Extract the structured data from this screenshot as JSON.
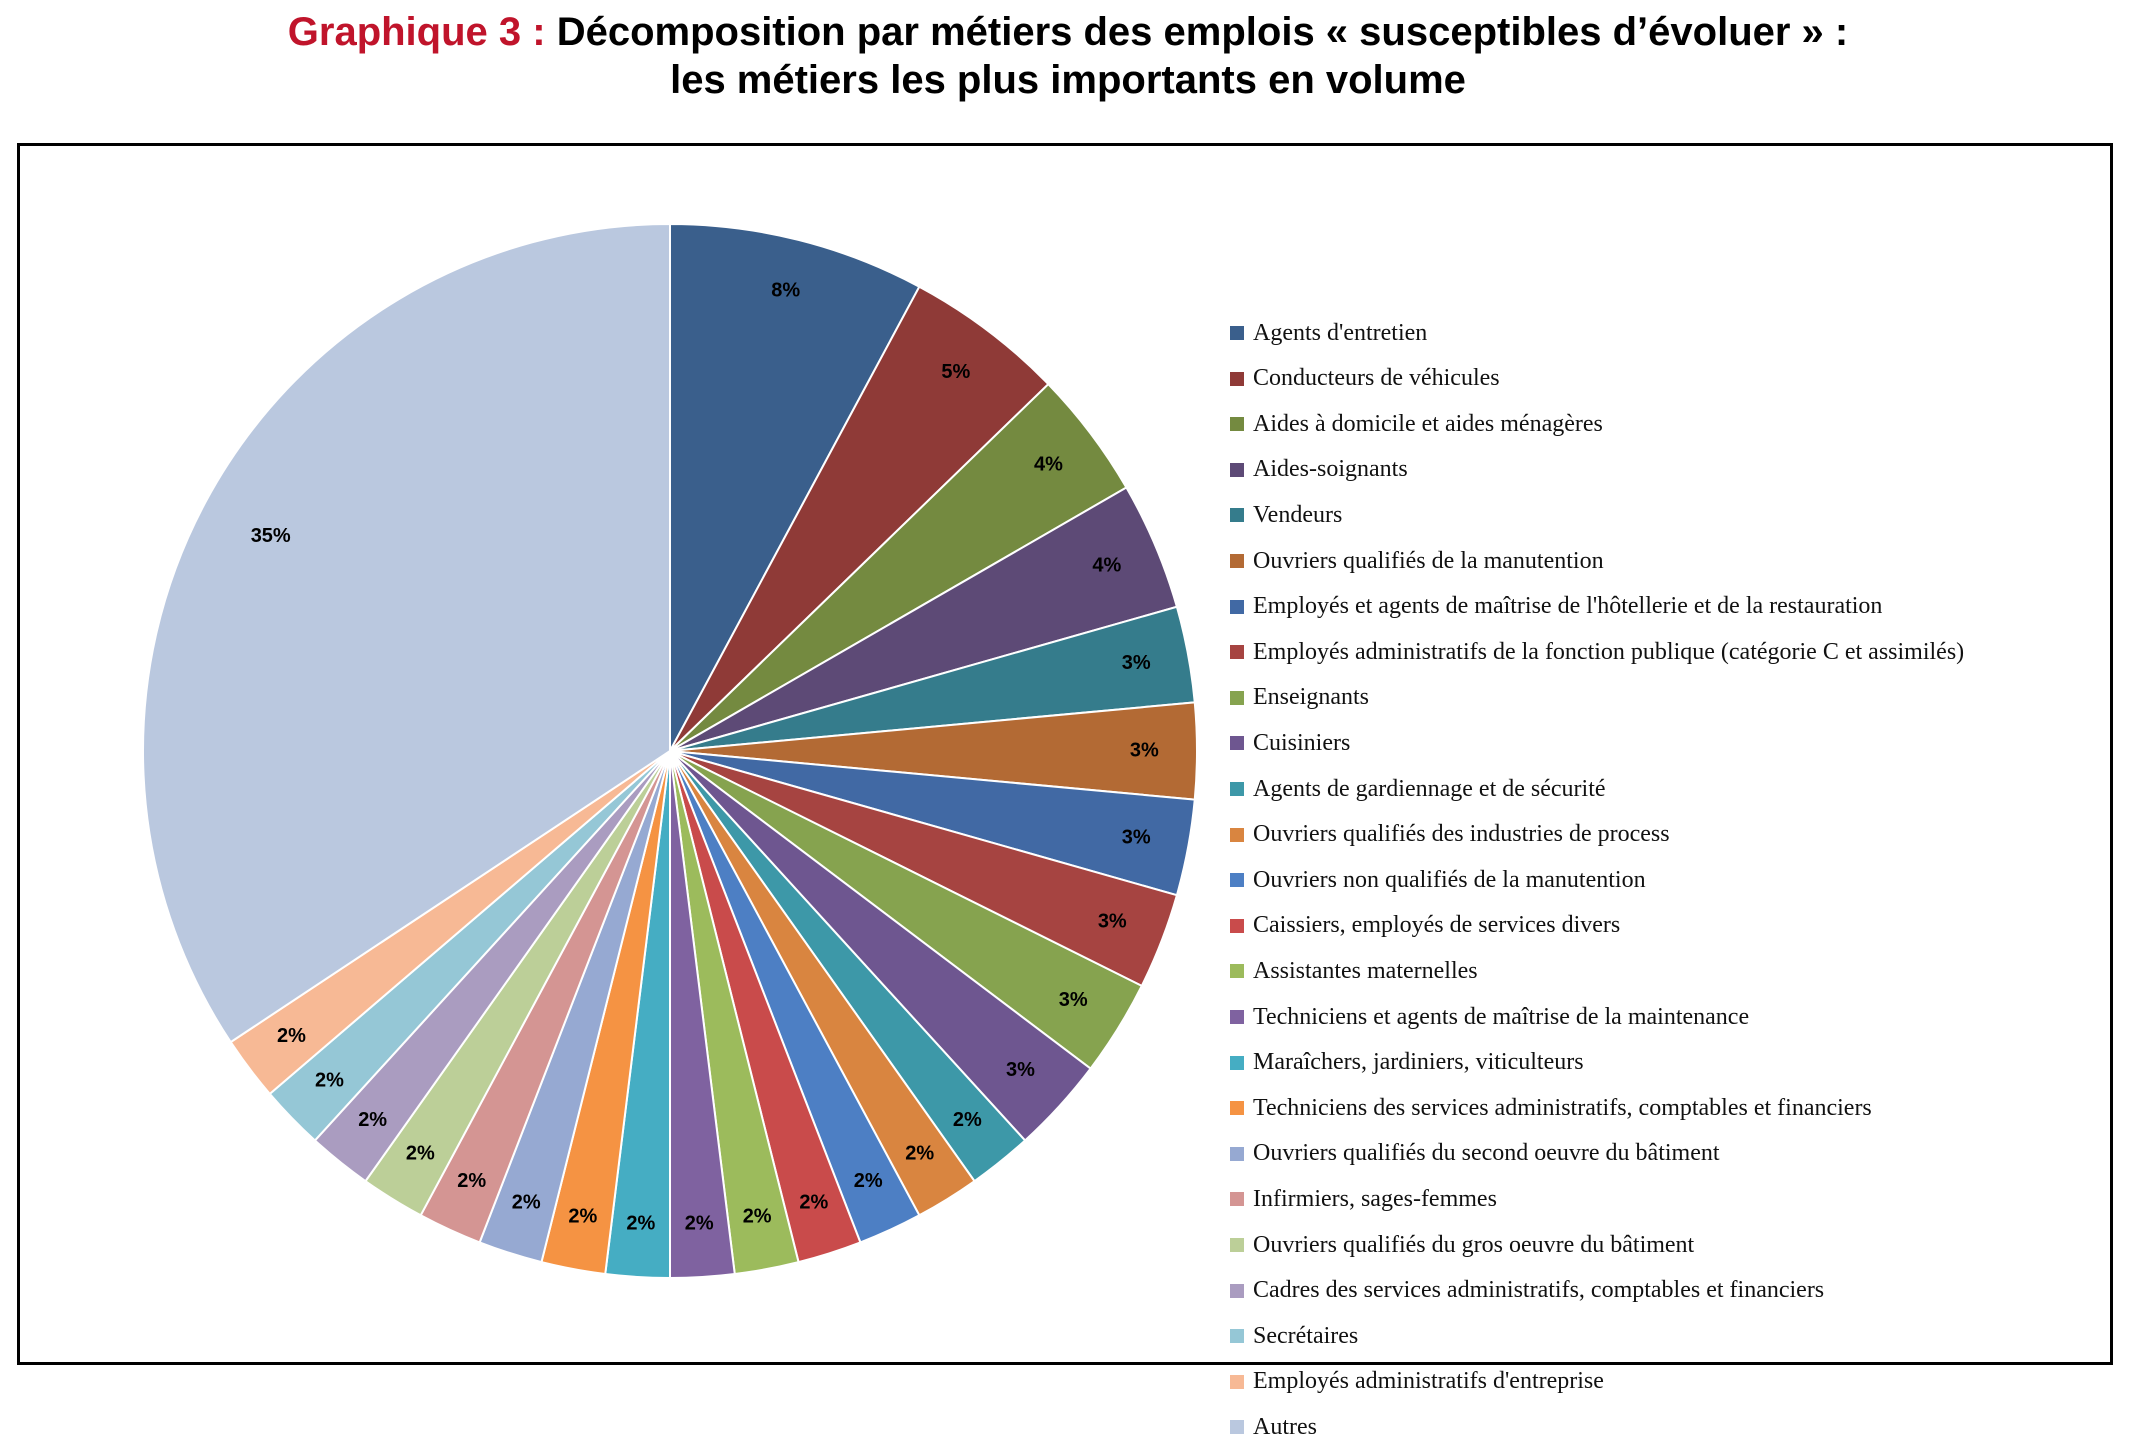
{
  "title": {
    "prefix": "Graphique 3 :",
    "line1": "Décomposition par métiers des emplois « susceptibles d’évoluer » :",
    "line2": "les métiers les plus importants en volume"
  },
  "chart_data": {
    "type": "pie",
    "title": "Graphique 3 : Décomposition par métiers des emplois « susceptibles d’évoluer » : les métiers les plus importants en volume",
    "legend_position": "right",
    "slices": [
      {
        "label": "Agents d'entretien",
        "value": 8,
        "display": "8%",
        "color": "#3A5F8C"
      },
      {
        "label": "Conducteurs de véhicules",
        "value": 5,
        "display": "5%",
        "color": "#8F3A37"
      },
      {
        "label": "Aides à domicile et aides ménagères",
        "value": 4,
        "display": "4%",
        "color": "#748A40"
      },
      {
        "label": "Aides-soignants",
        "value": 4,
        "display": "4%",
        "color": "#5D4A76"
      },
      {
        "label": "Vendeurs",
        "value": 3,
        "display": "3%",
        "color": "#357C8C"
      },
      {
        "label": "Ouvriers qualifiés de la manutention",
        "value": 3,
        "display": "3%",
        "color": "#B36A34"
      },
      {
        "label": "Employés et agents de maîtrise de l'hôtellerie et de la restauration",
        "value": 3,
        "display": "3%",
        "color": "#4169A4"
      },
      {
        "label": "Employés administratifs de la fonction publique (catégorie C et assimilés)",
        "value": 3,
        "display": "3%",
        "color": "#A64441"
      },
      {
        "label": "Enseignants",
        "value": 3,
        "display": "3%",
        "color": "#86A34F"
      },
      {
        "label": "Cuisiniers",
        "value": 3,
        "display": "3%",
        "color": "#6E5690"
      },
      {
        "label": "Agents de gardiennage et de sécurité",
        "value": 2,
        "display": "2%",
        "color": "#3D98A8"
      },
      {
        "label": "Ouvriers qualifiés des industries de process",
        "value": 2,
        "display": "2%",
        "color": "#D98540"
      },
      {
        "label": "Ouvriers non qualifiés de la manutention",
        "value": 2,
        "display": "2%",
        "color": "#4D7FC4"
      },
      {
        "label": "Caissiers, employés de services divers",
        "value": 2,
        "display": "2%",
        "color": "#C94B4B"
      },
      {
        "label": "Assistantes maternelles",
        "value": 2,
        "display": "2%",
        "color": "#9CBB5C"
      },
      {
        "label": "Techniciens et agents de maîtrise de la maintenance",
        "value": 2,
        "display": "2%",
        "color": "#7F62A0"
      },
      {
        "label": "Maraîchers, jardiniers, viticulteurs",
        "value": 2,
        "display": "2%",
        "color": "#45ADC3"
      },
      {
        "label": "Techniciens des services administratifs, comptables et financiers",
        "value": 2,
        "display": "2%",
        "color": "#F59343"
      },
      {
        "label": "Ouvriers qualifiés du second oeuvre du bâtiment",
        "value": 2,
        "display": "2%",
        "color": "#96A9D2"
      },
      {
        "label": "Infirmiers, sages-femmes",
        "value": 2,
        "display": "2%",
        "color": "#D49593"
      },
      {
        "label": "Ouvriers qualifiés du gros oeuvre du bâtiment",
        "value": 2,
        "display": "2%",
        "color": "#BCCF98"
      },
      {
        "label": "Cadres des services administratifs, comptables et financiers",
        "value": 2,
        "display": "2%",
        "color": "#AA9CC0"
      },
      {
        "label": "Secrétaires",
        "value": 2,
        "display": "2%",
        "color": "#95C7D6"
      },
      {
        "label": "Employés administratifs d'entreprise",
        "value": 2,
        "display": "2%",
        "color": "#F7B995"
      },
      {
        "label": "Autres",
        "value": 35,
        "display": "35%",
        "color": "#BAC8DF"
      }
    ]
  }
}
